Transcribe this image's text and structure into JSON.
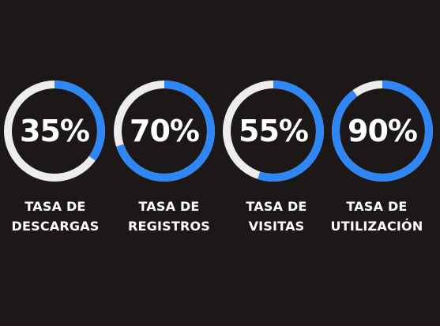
{
  "colors": {
    "background": "#1c1818",
    "progress": "#2f86f6",
    "track": "#ededed",
    "text": "#ffffff"
  },
  "gauges": [
    {
      "value_text": "35%",
      "value": 35,
      "label_line1": "TASA DE",
      "label_line2": "DESCARGAS"
    },
    {
      "value_text": "70%",
      "value": 70,
      "label_line1": "TASA DE",
      "label_line2": "REGISTROS"
    },
    {
      "value_text": "55%",
      "value": 55,
      "label_line1": "TASA DE",
      "label_line2": "VISITAS"
    },
    {
      "value_text": "90%",
      "value": 90,
      "label_line1": "TASA DE",
      "label_line2": "UTILIZACIÓN"
    }
  ]
}
